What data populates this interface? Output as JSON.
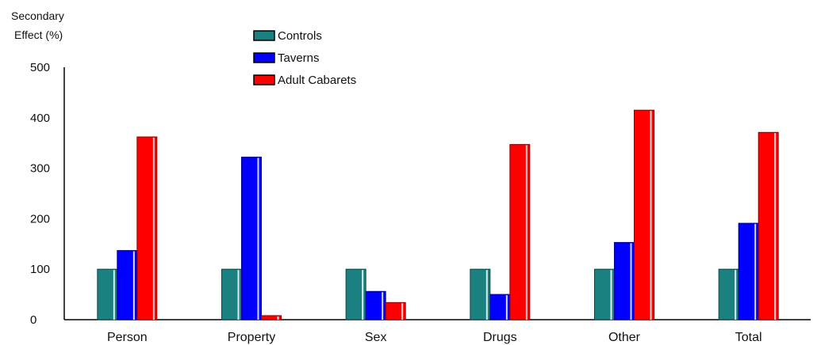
{
  "chart_data": {
    "type": "bar",
    "ylabel": [
      "Secondary",
      "Effect (%)"
    ],
    "xlabel": "",
    "categories": [
      "Person",
      "Property",
      "Sex",
      "Drugs",
      "Other",
      "Total"
    ],
    "ylim": [
      0,
      500
    ],
    "yticks": [
      0,
      100,
      200,
      300,
      400,
      500
    ],
    "grid": false,
    "legend_position": "top-center",
    "series": [
      {
        "name": "Controls",
        "color": "#1a8080",
        "values": [
          100,
          100,
          100,
          100,
          100,
          100
        ]
      },
      {
        "name": "Taverns",
        "color": "#0000ff",
        "values": [
          137,
          322,
          56,
          50,
          153,
          191
        ]
      },
      {
        "name": "Adult Cabarets",
        "color": "#ff0000",
        "values": [
          362,
          8,
          34,
          347,
          415,
          371
        ]
      }
    ]
  }
}
